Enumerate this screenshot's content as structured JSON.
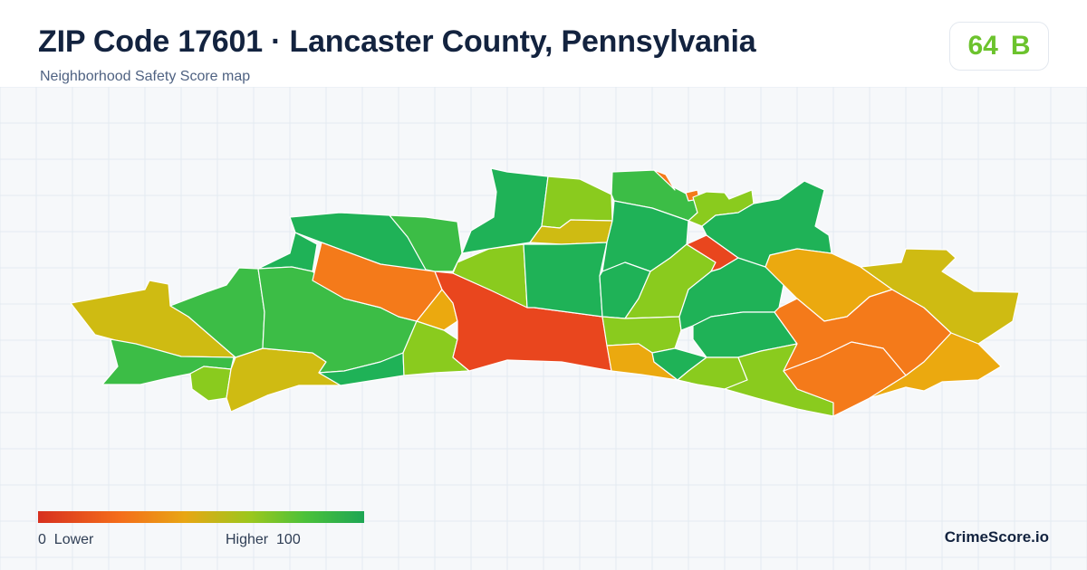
{
  "header": {
    "title": "ZIP Code 17601 · Lancaster County, Pennsylvania",
    "subtitle": "Neighborhood Safety Score map"
  },
  "score": {
    "value": "64",
    "grade": "B",
    "color": "#6cc32d"
  },
  "legend": {
    "min": "0",
    "min_label": "Lower",
    "max_label": "Higher",
    "max": "100",
    "gradient": [
      "#d7301f",
      "#f46d1a",
      "#e8a614",
      "#9cc71d",
      "#4bc13a",
      "#1ea654"
    ]
  },
  "brand": "CrimeScore.io",
  "map": {
    "background": "#f6f8fa",
    "grid_color": "#e4eaf1",
    "region_fills": {
      "safest": "#1fb257",
      "safe": "#3cbd46",
      "above_average": "#8acb1e",
      "average": "#cfbb12",
      "below_average": "#eba90f",
      "low": "#f47a1a",
      "lowest": "#e9461e"
    }
  }
}
